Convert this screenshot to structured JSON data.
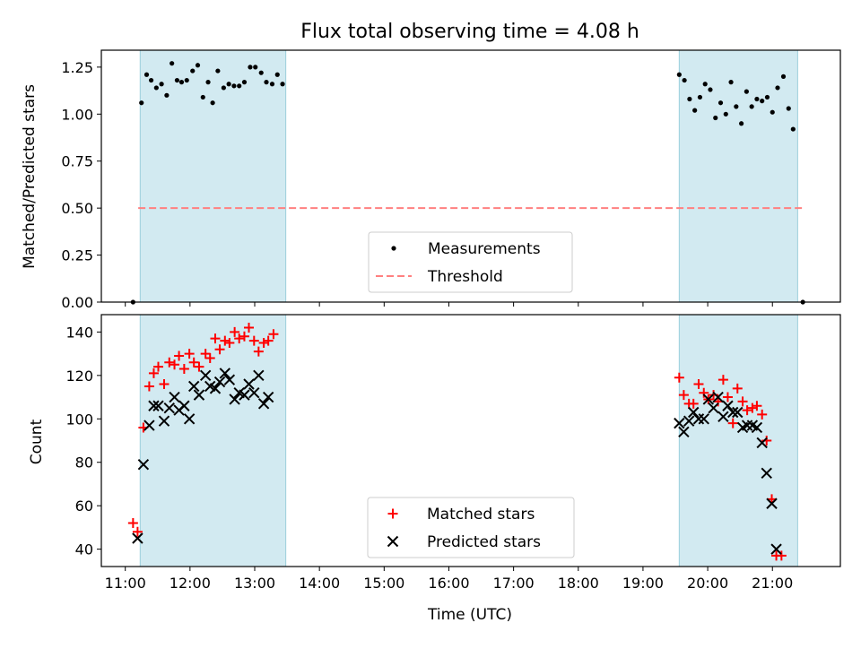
{
  "chart_data": {
    "type": "scatter",
    "title": "Flux total observing time = 4.08 h",
    "xlabel": "Time (UTC)",
    "x_ticks": [
      "11:00",
      "12:00",
      "13:00",
      "14:00",
      "15:00",
      "16:00",
      "17:00",
      "18:00",
      "19:00",
      "20:00",
      "21:00"
    ],
    "x_tick_hours": [
      11,
      12,
      13,
      14,
      15,
      16,
      17,
      18,
      19,
      20,
      21
    ],
    "xlim": [
      10.63,
      22.05
    ],
    "colors": {
      "band": "#add8e6",
      "measurement": "#000000",
      "threshold": "#ff8080",
      "matched": "#ff0000",
      "predicted": "#000000"
    },
    "observing_windows": [
      [
        11.23,
        13.48
      ],
      [
        19.56,
        21.39
      ]
    ],
    "panels": [
      {
        "ylabel": "Matched/Predicted stars",
        "ylim": [
          0,
          1.34
        ],
        "y_ticks": [
          "0.00",
          "0.25",
          "0.50",
          "0.75",
          "1.00",
          "1.25"
        ],
        "y_tick_values": [
          0,
          0.25,
          0.5,
          0.75,
          1.0,
          1.25
        ],
        "legend": [
          "Measurements",
          "Threshold"
        ],
        "threshold": {
          "value": 0.5,
          "x_range": [
            11.2,
            21.5
          ]
        },
        "series": [
          {
            "name": "Measurements",
            "marker": "dot",
            "points": [
              [
                11.12,
                0.0
              ],
              [
                11.25,
                1.06
              ],
              [
                11.33,
                1.21
              ],
              [
                11.4,
                1.18
              ],
              [
                11.48,
                1.14
              ],
              [
                11.56,
                1.16
              ],
              [
                11.64,
                1.1
              ],
              [
                11.72,
                1.27
              ],
              [
                11.8,
                1.18
              ],
              [
                11.87,
                1.17
              ],
              [
                11.95,
                1.18
              ],
              [
                12.04,
                1.23
              ],
              [
                12.12,
                1.26
              ],
              [
                12.2,
                1.09
              ],
              [
                12.28,
                1.17
              ],
              [
                12.35,
                1.06
              ],
              [
                12.43,
                1.23
              ],
              [
                12.52,
                1.14
              ],
              [
                12.6,
                1.16
              ],
              [
                12.68,
                1.15
              ],
              [
                12.76,
                1.15
              ],
              [
                12.84,
                1.17
              ],
              [
                12.93,
                1.25
              ],
              [
                13.01,
                1.25
              ],
              [
                13.1,
                1.22
              ],
              [
                13.18,
                1.17
              ],
              [
                13.27,
                1.16
              ],
              [
                13.35,
                1.21
              ],
              [
                13.43,
                1.16
              ],
              [
                19.56,
                1.21
              ],
              [
                19.64,
                1.18
              ],
              [
                19.72,
                1.08
              ],
              [
                19.8,
                1.02
              ],
              [
                19.88,
                1.09
              ],
              [
                19.96,
                1.16
              ],
              [
                20.04,
                1.13
              ],
              [
                20.12,
                0.98
              ],
              [
                20.2,
                1.06
              ],
              [
                20.28,
                1.0
              ],
              [
                20.36,
                1.17
              ],
              [
                20.44,
                1.04
              ],
              [
                20.52,
                0.95
              ],
              [
                20.6,
                1.12
              ],
              [
                20.68,
                1.04
              ],
              [
                20.76,
                1.08
              ],
              [
                20.84,
                1.07
              ],
              [
                20.92,
                1.09
              ],
              [
                21.0,
                1.01
              ],
              [
                21.08,
                1.14
              ],
              [
                21.17,
                1.2
              ],
              [
                21.25,
                1.03
              ],
              [
                21.32,
                0.92
              ],
              [
                21.47,
                0.0
              ]
            ]
          }
        ]
      },
      {
        "ylabel": "Count",
        "ylim": [
          32,
          148
        ],
        "y_ticks": [
          "40",
          "60",
          "80",
          "100",
          "120",
          "140"
        ],
        "y_tick_values": [
          40,
          60,
          80,
          100,
          120,
          140
        ],
        "legend": [
          "Matched stars",
          "Predicted stars"
        ],
        "series": [
          {
            "name": "Matched stars",
            "marker": "plus",
            "points": [
              [
                11.12,
                52
              ],
              [
                11.19,
                48
              ],
              [
                11.28,
                96
              ],
              [
                11.37,
                115
              ],
              [
                11.44,
                121
              ],
              [
                11.51,
                124
              ],
              [
                11.6,
                116
              ],
              [
                11.68,
                126
              ],
              [
                11.76,
                125
              ],
              [
                11.83,
                129
              ],
              [
                11.91,
                123
              ],
              [
                11.99,
                130
              ],
              [
                12.06,
                126
              ],
              [
                12.14,
                124
              ],
              [
                12.24,
                130
              ],
              [
                12.31,
                128
              ],
              [
                12.39,
                137
              ],
              [
                12.46,
                132
              ],
              [
                12.54,
                136
              ],
              [
                12.61,
                135
              ],
              [
                12.69,
                140
              ],
              [
                12.76,
                137
              ],
              [
                12.84,
                138
              ],
              [
                12.91,
                142
              ],
              [
                12.99,
                136
              ],
              [
                13.06,
                131
              ],
              [
                13.14,
                135
              ],
              [
                13.21,
                136
              ],
              [
                13.29,
                139
              ],
              [
                19.56,
                119
              ],
              [
                19.63,
                111
              ],
              [
                19.71,
                107
              ],
              [
                19.78,
                107
              ],
              [
                19.86,
                116
              ],
              [
                19.94,
                112
              ],
              [
                20.01,
                109
              ],
              [
                20.09,
                111
              ],
              [
                20.16,
                108
              ],
              [
                20.24,
                118
              ],
              [
                20.31,
                110
              ],
              [
                20.39,
                98
              ],
              [
                20.46,
                114
              ],
              [
                20.54,
                108
              ],
              [
                20.61,
                104
              ],
              [
                20.69,
                105
              ],
              [
                20.76,
                106
              ],
              [
                20.84,
                102
              ],
              [
                20.91,
                90
              ],
              [
                20.99,
                63
              ],
              [
                21.06,
                37
              ],
              [
                21.14,
                37
              ]
            ]
          },
          {
            "name": "Predicted stars",
            "marker": "x",
            "points": [
              [
                11.19,
                45
              ],
              [
                11.28,
                79
              ],
              [
                11.37,
                97
              ],
              [
                11.44,
                106
              ],
              [
                11.51,
                106
              ],
              [
                11.6,
                99
              ],
              [
                11.68,
                105
              ],
              [
                11.76,
                110
              ],
              [
                11.83,
                104
              ],
              [
                11.91,
                106
              ],
              [
                11.99,
                100
              ],
              [
                12.06,
                115
              ],
              [
                12.14,
                111
              ],
              [
                12.24,
                120
              ],
              [
                12.31,
                115
              ],
              [
                12.39,
                114
              ],
              [
                12.46,
                117
              ],
              [
                12.54,
                121
              ],
              [
                12.61,
                118
              ],
              [
                12.69,
                109
              ],
              [
                12.76,
                112
              ],
              [
                12.84,
                111
              ],
              [
                12.91,
                116
              ],
              [
                12.99,
                112
              ],
              [
                13.06,
                120
              ],
              [
                13.14,
                107
              ],
              [
                13.21,
                110
              ],
              [
                19.56,
                98
              ],
              [
                19.63,
                94
              ],
              [
                19.71,
                99
              ],
              [
                19.78,
                103
              ],
              [
                19.86,
                100
              ],
              [
                19.94,
                100
              ],
              [
                20.01,
                109
              ],
              [
                20.09,
                105
              ],
              [
                20.16,
                110
              ],
              [
                20.24,
                101
              ],
              [
                20.31,
                106
              ],
              [
                20.39,
                103
              ],
              [
                20.46,
                103
              ],
              [
                20.54,
                96
              ],
              [
                20.61,
                97
              ],
              [
                20.69,
                97
              ],
              [
                20.76,
                96
              ],
              [
                20.84,
                89
              ],
              [
                20.91,
                75
              ],
              [
                20.99,
                61
              ],
              [
                21.06,
                40
              ]
            ]
          }
        ]
      }
    ]
  }
}
